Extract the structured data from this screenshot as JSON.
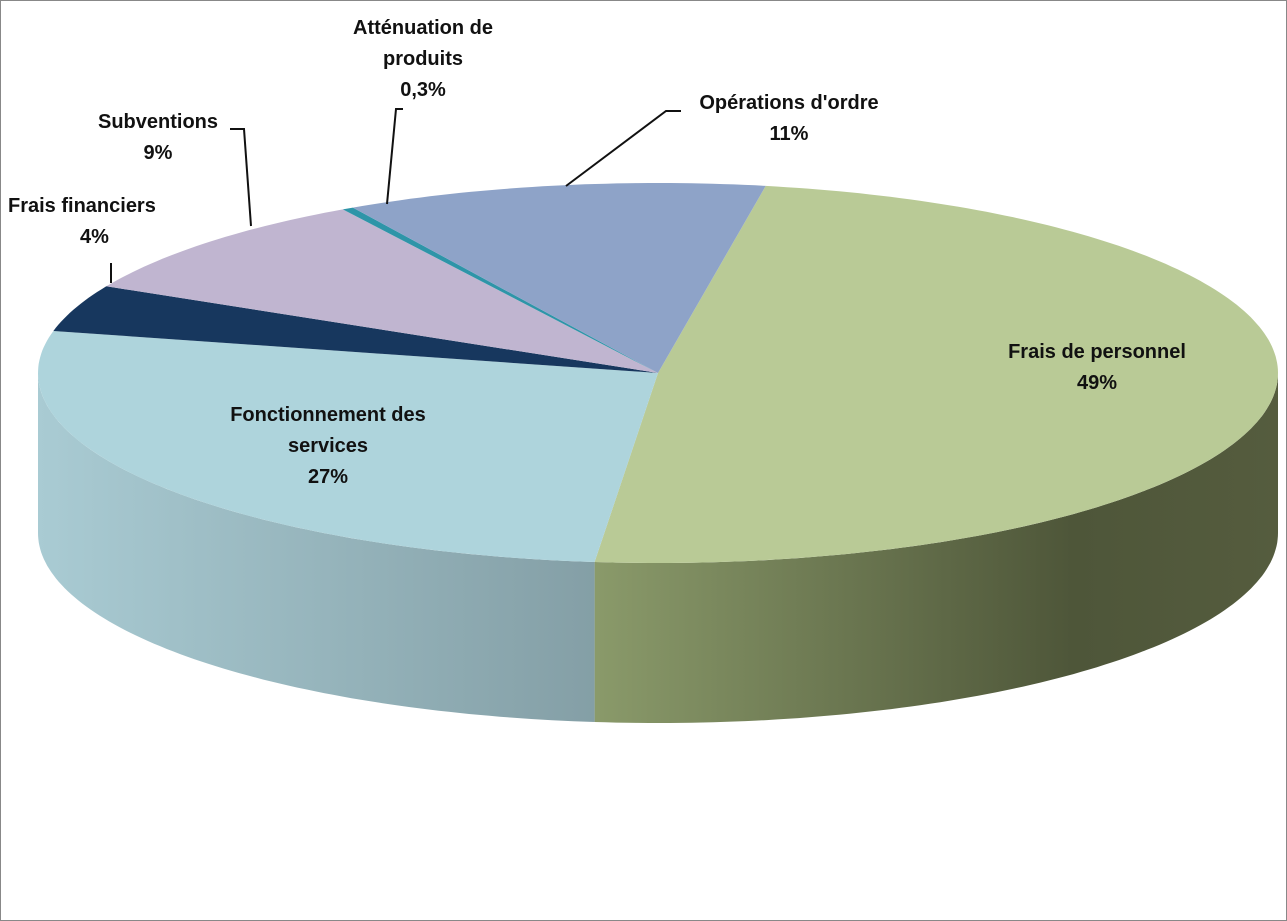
{
  "chart_data": {
    "type": "pie3d",
    "categories": [
      "Frais de personnel",
      "Fonctionnement des services",
      "Frais financiers",
      "Subventions",
      "Atténuation de produits",
      "Opérations d'ordre"
    ],
    "values": [
      49,
      27,
      4,
      9,
      0.3,
      11
    ],
    "value_labels": [
      "49%",
      "27%",
      "4%",
      "9%",
      "0,3%",
      "11%"
    ],
    "colors": [
      "#b9ca96",
      "#aed4dc",
      "#17375e",
      "#c0b5d0",
      "#2e95a8",
      "#8ea3c8"
    ]
  }
}
